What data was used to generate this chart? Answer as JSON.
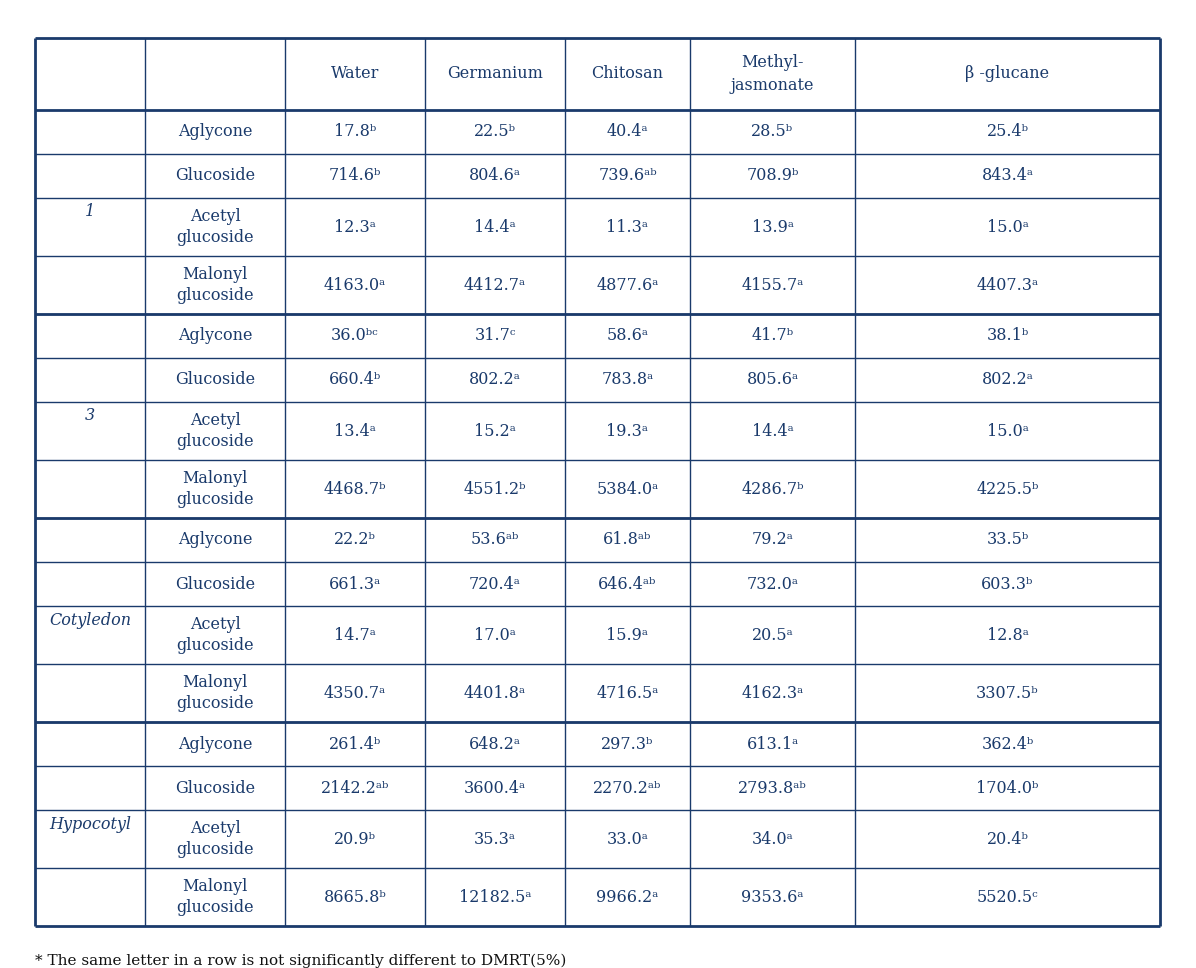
{
  "headers": [
    "",
    "",
    "Water",
    "Germanium",
    "Chitosan",
    "Methyl-\njasmonate",
    "β -glucane"
  ],
  "sections": [
    {
      "group_label": "1",
      "rows": [
        [
          "Aglycone",
          "17.8ᵇ",
          "22.5ᵇ",
          "40.4ᵃ",
          "28.5ᵇ",
          "25.4ᵇ"
        ],
        [
          "Glucoside",
          "714.6ᵇ",
          "804.6ᵃ",
          "739.6ᵃᵇ",
          "708.9ᵇ",
          "843.4ᵃ"
        ],
        [
          "Acetyl\nglucoside",
          "12.3ᵃ",
          "14.4ᵃ",
          "11.3ᵃ",
          "13.9ᵃ",
          "15.0ᵃ"
        ],
        [
          "Malonyl\nglucoside",
          "4163.0ᵃ",
          "4412.7ᵃ",
          "4877.6ᵃ",
          "4155.7ᵃ",
          "4407.3ᵃ"
        ]
      ]
    },
    {
      "group_label": "3",
      "rows": [
        [
          "Aglycone",
          "36.0ᵇᶜ",
          "31.7ᶜ",
          "58.6ᵃ",
          "41.7ᵇ",
          "38.1ᵇ"
        ],
        [
          "Glucoside",
          "660.4ᵇ",
          "802.2ᵃ",
          "783.8ᵃ",
          "805.6ᵃ",
          "802.2ᵃ"
        ],
        [
          "Acetyl\nglucoside",
          "13.4ᵃ",
          "15.2ᵃ",
          "19.3ᵃ",
          "14.4ᵃ",
          "15.0ᵃ"
        ],
        [
          "Malonyl\nglucoside",
          "4468.7ᵇ",
          "4551.2ᵇ",
          "5384.0ᵃ",
          "4286.7ᵇ",
          "4225.5ᵇ"
        ]
      ]
    },
    {
      "group_label": "Cotyledon",
      "rows": [
        [
          "Aglycone",
          "22.2ᵇ",
          "53.6ᵃᵇ",
          "61.8ᵃᵇ",
          "79.2ᵃ",
          "33.5ᵇ"
        ],
        [
          "Glucoside",
          "661.3ᵃ",
          "720.4ᵃ",
          "646.4ᵃᵇ",
          "732.0ᵃ",
          "603.3ᵇ"
        ],
        [
          "Acetyl\nglucoside",
          "14.7ᵃ",
          "17.0ᵃ",
          "15.9ᵃ",
          "20.5ᵃ",
          "12.8ᵃ"
        ],
        [
          "Malonyl\nglucoside",
          "4350.7ᵃ",
          "4401.8ᵃ",
          "4716.5ᵃ",
          "4162.3ᵃ",
          "3307.5ᵇ"
        ]
      ]
    },
    {
      "group_label": "Hypocotyl",
      "rows": [
        [
          "Aglycone",
          "261.4ᵇ",
          "648.2ᵃ",
          "297.3ᵇ",
          "613.1ᵃ",
          "362.4ᵇ"
        ],
        [
          "Glucoside",
          "2142.2ᵃᵇ",
          "3600.4ᵃ",
          "2270.2ᵃᵇ",
          "2793.8ᵃᵇ",
          "1704.0ᵇ"
        ],
        [
          "Acetyl\nglucoside",
          "20.9ᵇ",
          "35.3ᵃ",
          "33.0ᵃ",
          "34.0ᵃ",
          "20.4ᵇ"
        ],
        [
          "Malonyl\nglucoside",
          "8665.8ᵇ",
          "12182.5ᵃ",
          "9966.2ᵃ",
          "9353.6ᵃ",
          "5520.5ᶜ"
        ]
      ]
    }
  ],
  "footnote": "* The same letter in a row is not significantly different to DMRT(5%)",
  "text_color": "#1a3a6b",
  "border_color": "#1a3a6b",
  "bg_color": "#ffffff",
  "font_size": 11.5,
  "header_font_size": 11.5
}
